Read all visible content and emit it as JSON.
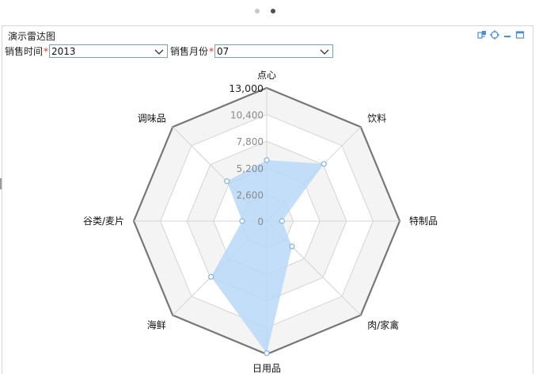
{
  "panel": {
    "title": "演示雷达图"
  },
  "filters": {
    "year_label": "销售时间",
    "year_required": "*",
    "year_value": "2013",
    "month_label": "销售月份",
    "month_required": "*",
    "month_value": "07"
  },
  "toolbar": {
    "export_icon": "export-icon",
    "locate_icon": "crosshair-icon",
    "minimize_icon": "minimize-icon",
    "maximize_icon": "maximize-icon"
  },
  "chart_data": {
    "type": "radar",
    "categories": [
      "点心",
      "饮料",
      "特制品",
      "肉/家禽",
      "日用品",
      "海鲜",
      "谷类/麦片",
      "调味品"
    ],
    "series": [
      {
        "values": [
          5950,
          7900,
          1500,
          3500,
          12900,
          7700,
          2400,
          5500
        ]
      }
    ],
    "ticks": [
      "0",
      "2,600",
      "5,200",
      "7,800",
      "10,400",
      "13,000"
    ],
    "rmax": 13000,
    "fill_color": "#b9d8f7",
    "fill_opacity": 0.85,
    "grid_band_colors": [
      "#f4f4f4",
      "#ffffff"
    ],
    "outer_border_color": "#777777",
    "grid_line_color": "#d4d4d4",
    "grid": true
  }
}
